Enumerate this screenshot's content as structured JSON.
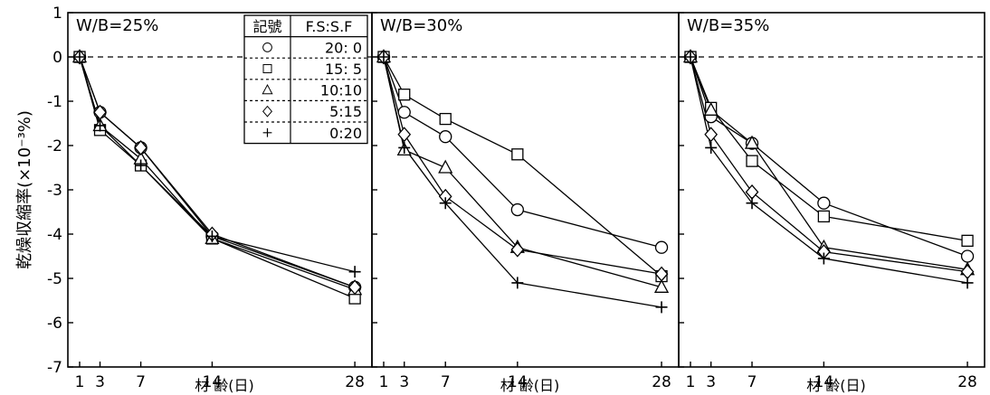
{
  "chart_data": {
    "type": "line",
    "ylabel": "乾燥収縮率(×10⁻³%)",
    "xlabel": "材 齢(日)",
    "x": [
      1,
      3,
      7,
      14,
      28
    ],
    "x_ticks": [
      1,
      3,
      7,
      14,
      28
    ],
    "xlim": [
      0,
      28.7
    ],
    "ylim": [
      -7,
      1
    ],
    "y_ticks": [
      1,
      0,
      -1,
      -2,
      -3,
      -4,
      -5,
      -6,
      -7
    ],
    "y_tick_labels": [
      "1",
      "0",
      "-1",
      "-2",
      "-3",
      "-4",
      "-5",
      "-6",
      "-7"
    ],
    "reference_line": {
      "y": 0,
      "style": "dashed"
    },
    "legend": {
      "header": [
        "記號",
        "F.S:S.F"
      ],
      "placement": "top-right of first panel",
      "rows": [
        {
          "marker": "circle",
          "symbol": "○",
          "label": "20: 0"
        },
        {
          "marker": "square",
          "symbol": "□",
          "label": "15: 5"
        },
        {
          "marker": "triangle",
          "symbol": "△",
          "label": "10:10"
        },
        {
          "marker": "diamond",
          "symbol": "◇",
          "label": "5:15"
        },
        {
          "marker": "plus",
          "symbol": "+",
          "label": "0:20"
        }
      ]
    },
    "panels": [
      {
        "title": "W/B=25%",
        "series": [
          {
            "name": "20: 0",
            "marker": "circle",
            "values": [
              0,
              -1.25,
              -2.05,
              -4.05,
              -5.2
            ]
          },
          {
            "name": "15: 5",
            "marker": "square",
            "values": [
              0,
              -1.65,
              -2.45,
              -4.1,
              -5.45
            ]
          },
          {
            "name": "10:10",
            "marker": "triangle",
            "values": [
              0,
              -1.55,
              -2.3,
              -4.1,
              -5.25
            ]
          },
          {
            "name": "5:15",
            "marker": "diamond",
            "values": [
              0,
              -1.25,
              -2.05,
              -4.0,
              -5.2
            ]
          },
          {
            "name": "0:20",
            "marker": "plus",
            "values": [
              0,
              -1.55,
              -2.45,
              -4.05,
              -4.85
            ]
          }
        ]
      },
      {
        "title": "W/B=30%",
        "series": [
          {
            "name": "20: 0",
            "marker": "circle",
            "values": [
              0,
              -1.25,
              -1.8,
              -3.45,
              -4.3
            ]
          },
          {
            "name": "15: 5",
            "marker": "square",
            "values": [
              0,
              -0.85,
              -1.4,
              -2.2,
              -4.95
            ]
          },
          {
            "name": "10:10",
            "marker": "triangle",
            "values": [
              0,
              -2.1,
              -2.5,
              -4.3,
              -5.2
            ]
          },
          {
            "name": "5:15",
            "marker": "diamond",
            "values": [
              0,
              -1.75,
              -3.15,
              -4.35,
              -4.9
            ]
          },
          {
            "name": "0:20",
            "marker": "plus",
            "values": [
              0,
              -2.05,
              -3.3,
              -5.1,
              -5.65
            ]
          }
        ]
      },
      {
        "title": "W/B=35%",
        "series": [
          {
            "name": "20: 0",
            "marker": "circle",
            "values": [
              0,
              -1.35,
              -1.95,
              -3.3,
              -4.5
            ]
          },
          {
            "name": "15: 5",
            "marker": "square",
            "values": [
              0,
              -1.15,
              -2.35,
              -3.6,
              -4.15
            ]
          },
          {
            "name": "10:10",
            "marker": "triangle",
            "values": [
              0,
              -1.2,
              -1.95,
              -4.3,
              -4.8
            ]
          },
          {
            "name": "5:15",
            "marker": "diamond",
            "values": [
              0,
              -1.75,
              -3.05,
              -4.4,
              -4.85
            ]
          },
          {
            "name": "0:20",
            "marker": "plus",
            "values": [
              0,
              -2.05,
              -3.3,
              -4.55,
              -5.1
            ]
          }
        ]
      }
    ]
  }
}
